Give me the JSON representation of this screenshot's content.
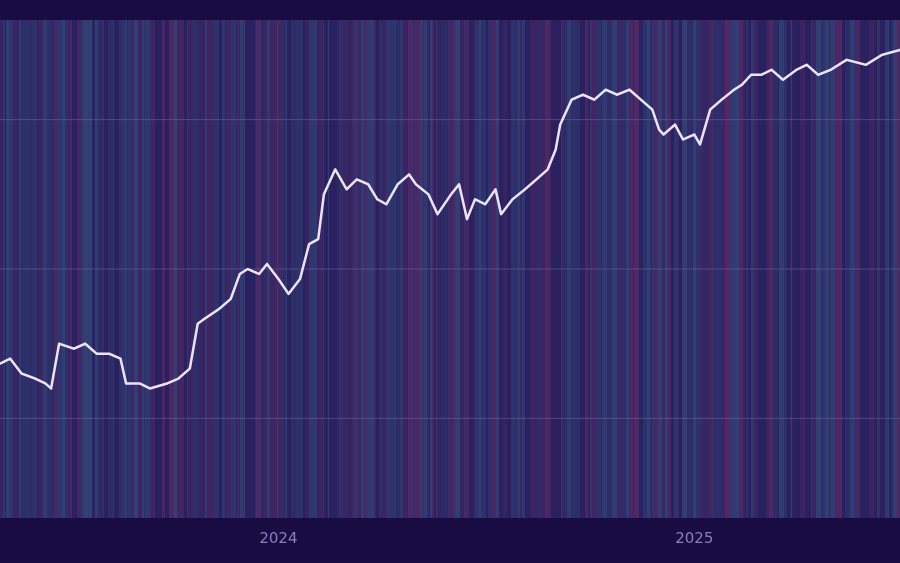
{
  "chart_data": {
    "type": "line",
    "title": "",
    "xlabel": "",
    "ylabel": "",
    "x_axis": {
      "type": "date",
      "range": [
        "2023-05-01",
        "2025-07-01"
      ],
      "ticks": [
        {
          "value": "2024-01-01",
          "label": "2024"
        },
        {
          "value": "2025-01-01",
          "label": "2025"
        }
      ]
    },
    "y_axis": {
      "tick_labels_visible": false,
      "ylim": [
        0,
        100
      ],
      "gridlines": [
        20,
        50,
        80
      ]
    },
    "grid": {
      "horizontal": true,
      "vertical": false
    },
    "legend": "none",
    "background_stripes": true,
    "colors": {
      "background": "#190c42",
      "plot_base": "#2a2160",
      "stripe_a": "#34497a",
      "stripe_b": "#5a2a66",
      "line": "#ece4ff",
      "gridline": "#6a5f98",
      "tick_text": "#8b7fbf"
    },
    "series": [
      {
        "points": [
          [
            "2023-05-01",
            31
          ],
          [
            "2023-05-10",
            32
          ],
          [
            "2023-05-20",
            29
          ],
          [
            "2023-06-01",
            28
          ],
          [
            "2023-06-10",
            27
          ],
          [
            "2023-06-15",
            26
          ],
          [
            "2023-06-22",
            35
          ],
          [
            "2023-07-05",
            34
          ],
          [
            "2023-07-15",
            35
          ],
          [
            "2023-07-25",
            33
          ],
          [
            "2023-08-05",
            33
          ],
          [
            "2023-08-15",
            32
          ],
          [
            "2023-08-20",
            27
          ],
          [
            "2023-09-01",
            27
          ],
          [
            "2023-09-10",
            26
          ],
          [
            "2023-09-25",
            27
          ],
          [
            "2023-10-05",
            28
          ],
          [
            "2023-10-15",
            30
          ],
          [
            "2023-10-22",
            39
          ],
          [
            "2023-10-28",
            40
          ],
          [
            "2023-11-10",
            42
          ],
          [
            "2023-11-20",
            44
          ],
          [
            "2023-11-28",
            49
          ],
          [
            "2023-12-05",
            50
          ],
          [
            "2023-12-15",
            49
          ],
          [
            "2023-12-22",
            51
          ],
          [
            "2024-01-01",
            48
          ],
          [
            "2024-01-10",
            45
          ],
          [
            "2024-01-20",
            48
          ],
          [
            "2024-01-28",
            55
          ],
          [
            "2024-02-05",
            56
          ],
          [
            "2024-02-10",
            65
          ],
          [
            "2024-02-20",
            70
          ],
          [
            "2024-03-01",
            66
          ],
          [
            "2024-03-10",
            68
          ],
          [
            "2024-03-20",
            67
          ],
          [
            "2024-03-28",
            64
          ],
          [
            "2024-04-05",
            63
          ],
          [
            "2024-04-15",
            67
          ],
          [
            "2024-04-25",
            69
          ],
          [
            "2024-05-01",
            67
          ],
          [
            "2024-05-12",
            65
          ],
          [
            "2024-05-20",
            61
          ],
          [
            "2024-06-01",
            65
          ],
          [
            "2024-06-08",
            67
          ],
          [
            "2024-06-15",
            60
          ],
          [
            "2024-06-22",
            64
          ],
          [
            "2024-07-01",
            63
          ],
          [
            "2024-07-10",
            66
          ],
          [
            "2024-07-15",
            61
          ],
          [
            "2024-07-25",
            64
          ],
          [
            "2024-08-05",
            66
          ],
          [
            "2024-08-15",
            68
          ],
          [
            "2024-08-25",
            70
          ],
          [
            "2024-09-01",
            74
          ],
          [
            "2024-09-05",
            79
          ],
          [
            "2024-09-15",
            84
          ],
          [
            "2024-09-25",
            85
          ],
          [
            "2024-10-05",
            84
          ],
          [
            "2024-10-15",
            86
          ],
          [
            "2024-10-25",
            85
          ],
          [
            "2024-11-05",
            86
          ],
          [
            "2024-11-15",
            84
          ],
          [
            "2024-11-25",
            82
          ],
          [
            "2024-12-01",
            78
          ],
          [
            "2024-12-05",
            77
          ],
          [
            "2024-12-15",
            79
          ],
          [
            "2024-12-22",
            76
          ],
          [
            "2025-01-01",
            77
          ],
          [
            "2025-01-06",
            75
          ],
          [
            "2025-01-15",
            82
          ],
          [
            "2025-01-25",
            84
          ],
          [
            "2025-02-05",
            86
          ],
          [
            "2025-02-12",
            87
          ],
          [
            "2025-02-20",
            89
          ],
          [
            "2025-03-01",
            89
          ],
          [
            "2025-03-10",
            90
          ],
          [
            "2025-03-20",
            88
          ],
          [
            "2025-04-01",
            90
          ],
          [
            "2025-04-10",
            91
          ],
          [
            "2025-04-20",
            89
          ],
          [
            "2025-05-01",
            90
          ],
          [
            "2025-05-15",
            92
          ],
          [
            "2025-06-01",
            91
          ],
          [
            "2025-06-15",
            93
          ],
          [
            "2025-07-01",
            94
          ]
        ]
      }
    ]
  }
}
